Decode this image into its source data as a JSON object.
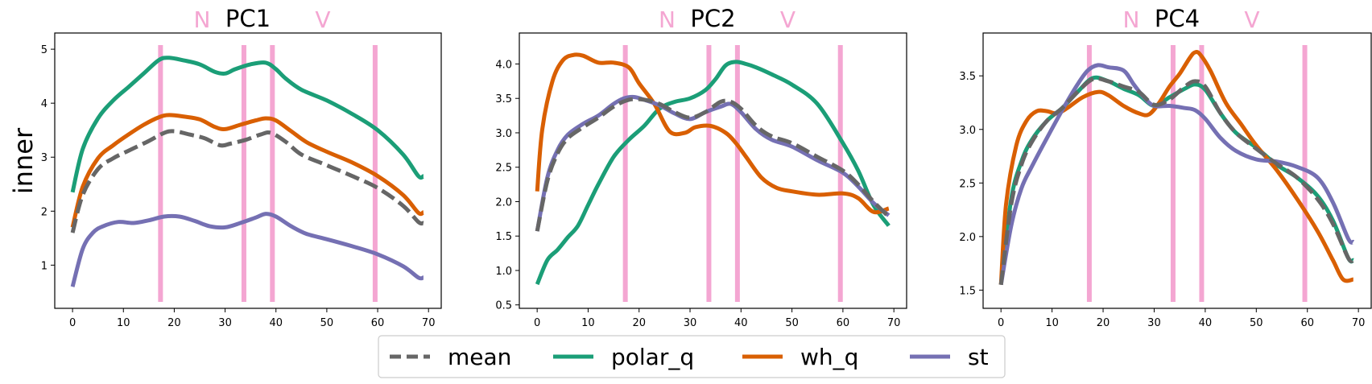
{
  "figure": {
    "ylabel": "inner",
    "legend": {
      "placement": "bottom-center",
      "entries": [
        {
          "label": "mean",
          "color": "#666666",
          "style": "dashed"
        },
        {
          "label": "polar_q",
          "color": "#1b9e77",
          "style": "solid"
        },
        {
          "label": "wh_q",
          "color": "#d95f02",
          "style": "solid"
        },
        {
          "label": "st",
          "color": "#7570b3",
          "style": "solid"
        }
      ]
    },
    "marker_color": "#f4a6d2",
    "title_marker_left": "N",
    "title_marker_right": "V"
  },
  "chart_data": [
    {
      "type": "line",
      "title": "PC1",
      "xlim": [
        -3.5,
        72.5
      ],
      "ylim": [
        0.2,
        5.3
      ],
      "xticks": [
        0,
        10,
        20,
        30,
        40,
        50,
        60,
        70
      ],
      "yticks": [
        1,
        2,
        3,
        4,
        5
      ],
      "grid": false,
      "vlines": [
        17.3,
        33.7,
        39.3,
        59.5
      ],
      "series": [
        {
          "name": "mean",
          "x": [
            0,
            2,
            5,
            8,
            11,
            15,
            18,
            20,
            23,
            26,
            29,
            31,
            34,
            37,
            39,
            42,
            45,
            50,
            55,
            60,
            65,
            68,
            69
          ],
          "y": [
            1.6,
            2.3,
            2.78,
            2.98,
            3.12,
            3.3,
            3.45,
            3.48,
            3.42,
            3.35,
            3.22,
            3.25,
            3.32,
            3.42,
            3.45,
            3.28,
            3.05,
            2.85,
            2.65,
            2.43,
            2.1,
            1.8,
            1.78
          ]
        },
        {
          "name": "polar_q",
          "x": [
            0,
            2,
            5,
            8,
            11,
            14,
            17,
            19,
            22,
            25,
            28,
            30,
            32,
            35,
            38,
            40,
            42,
            45,
            50,
            55,
            60,
            65,
            68,
            69
          ],
          "y": [
            2.35,
            3.15,
            3.72,
            4.05,
            4.3,
            4.55,
            4.8,
            4.84,
            4.79,
            4.72,
            4.58,
            4.55,
            4.63,
            4.72,
            4.75,
            4.63,
            4.45,
            4.25,
            4.05,
            3.8,
            3.5,
            3.05,
            2.65,
            2.65
          ]
        },
        {
          "name": "wh_q",
          "x": [
            0,
            2,
            5,
            8,
            11,
            14,
            17,
            19,
            22,
            25,
            28,
            30,
            33,
            36,
            38,
            40,
            43,
            46,
            50,
            55,
            60,
            65,
            68,
            69
          ],
          "y": [
            1.7,
            2.45,
            2.98,
            3.22,
            3.42,
            3.6,
            3.74,
            3.78,
            3.75,
            3.7,
            3.56,
            3.52,
            3.6,
            3.68,
            3.72,
            3.68,
            3.48,
            3.28,
            3.1,
            2.9,
            2.65,
            2.3,
            1.97,
            1.98
          ]
        },
        {
          "name": "st",
          "x": [
            0,
            2,
            4,
            6,
            9,
            12,
            15,
            18,
            21,
            24,
            27,
            30,
            33,
            36,
            38,
            40,
            43,
            46,
            50,
            55,
            60,
            65,
            68,
            69
          ],
          "y": [
            0.6,
            1.3,
            1.6,
            1.72,
            1.8,
            1.78,
            1.83,
            1.9,
            1.9,
            1.82,
            1.72,
            1.7,
            1.78,
            1.88,
            1.95,
            1.9,
            1.72,
            1.58,
            1.48,
            1.35,
            1.2,
            0.98,
            0.77,
            0.77
          ]
        }
      ]
    },
    {
      "type": "line",
      "title": "PC2",
      "xlim": [
        -3.5,
        72.5
      ],
      "ylim": [
        0.45,
        4.45
      ],
      "xticks": [
        0,
        10,
        20,
        30,
        40,
        50,
        60,
        70
      ],
      "yticks": [
        0.5,
        1.0,
        1.5,
        2.0,
        2.5,
        3.0,
        3.5,
        4.0
      ],
      "grid": false,
      "vlines": [
        17.3,
        33.7,
        39.3,
        59.5
      ],
      "series": [
        {
          "name": "mean",
          "x": [
            0,
            2,
            4,
            6,
            9,
            12,
            15,
            18,
            21,
            24,
            27,
            30,
            33,
            36,
            38,
            40,
            43,
            46,
            50,
            55,
            60,
            63,
            66,
            69
          ],
          "y": [
            1.57,
            2.3,
            2.7,
            2.92,
            3.08,
            3.22,
            3.38,
            3.48,
            3.48,
            3.42,
            3.3,
            3.22,
            3.3,
            3.45,
            3.45,
            3.35,
            3.1,
            2.95,
            2.85,
            2.65,
            2.45,
            2.25,
            2.0,
            1.78
          ]
        },
        {
          "name": "polar_q",
          "x": [
            0,
            2,
            4,
            6,
            8,
            10,
            12,
            15,
            18,
            21,
            24,
            27,
            30,
            33,
            35,
            37,
            39,
            41,
            43,
            46,
            50,
            55,
            60,
            63,
            66,
            69
          ],
          "y": [
            0.8,
            1.15,
            1.3,
            1.48,
            1.65,
            1.95,
            2.25,
            2.65,
            2.9,
            3.1,
            3.35,
            3.45,
            3.5,
            3.62,
            3.78,
            3.98,
            4.03,
            4.0,
            3.95,
            3.85,
            3.7,
            3.42,
            2.85,
            2.45,
            1.95,
            1.65
          ]
        },
        {
          "name": "wh_q",
          "x": [
            0,
            1,
            3,
            5,
            7,
            9,
            12,
            15,
            18,
            20,
            23,
            26,
            29,
            31,
            34,
            37,
            39,
            41,
            44,
            47,
            50,
            55,
            60,
            63,
            66,
            69
          ],
          "y": [
            2.15,
            3.05,
            3.75,
            4.05,
            4.13,
            4.12,
            4.02,
            4.02,
            3.95,
            3.72,
            3.42,
            3.02,
            3.0,
            3.08,
            3.1,
            3.0,
            2.85,
            2.65,
            2.35,
            2.2,
            2.15,
            2.1,
            2.12,
            2.05,
            1.85,
            1.9
          ]
        },
        {
          "name": "st",
          "x": [
            0,
            2,
            4,
            6,
            9,
            12,
            15,
            17,
            19,
            21,
            24,
            27,
            30,
            33,
            36,
            38,
            40,
            43,
            46,
            50,
            55,
            60,
            63,
            66,
            69
          ],
          "y": [
            1.57,
            2.35,
            2.75,
            2.97,
            3.13,
            3.25,
            3.42,
            3.5,
            3.52,
            3.48,
            3.4,
            3.28,
            3.2,
            3.3,
            3.38,
            3.42,
            3.3,
            3.05,
            2.9,
            2.8,
            2.6,
            2.42,
            2.22,
            1.98,
            1.8
          ]
        }
      ]
    },
    {
      "type": "line",
      "title": "PC4",
      "xlim": [
        -3.5,
        72.5
      ],
      "ylim": [
        1.33,
        3.9
      ],
      "xticks": [
        0,
        10,
        20,
        30,
        40,
        50,
        60,
        70
      ],
      "yticks": [
        1.5,
        2.0,
        2.5,
        3.0,
        3.5
      ],
      "grid": false,
      "vlines": [
        17.3,
        33.7,
        39.3,
        59.5
      ],
      "series": [
        {
          "name": "mean",
          "x": [
            0,
            2,
            4,
            6,
            9,
            12,
            15,
            18,
            21,
            24,
            27,
            30,
            33,
            36,
            38,
            40,
            43,
            46,
            50,
            54,
            58,
            62,
            65,
            68,
            69
          ],
          "y": [
            1.55,
            2.3,
            2.67,
            2.88,
            3.08,
            3.2,
            3.35,
            3.47,
            3.45,
            3.4,
            3.35,
            3.23,
            3.28,
            3.4,
            3.45,
            3.4,
            3.15,
            2.97,
            2.82,
            2.68,
            2.55,
            2.35,
            2.12,
            1.8,
            1.78
          ]
        },
        {
          "name": "polar_q",
          "x": [
            0,
            2,
            4,
            6,
            9,
            12,
            15,
            18,
            21,
            24,
            27,
            30,
            33,
            36,
            38,
            40,
            43,
            46,
            50,
            54,
            58,
            62,
            65,
            68,
            69
          ],
          "y": [
            1.55,
            2.35,
            2.7,
            2.9,
            3.08,
            3.2,
            3.35,
            3.48,
            3.45,
            3.38,
            3.32,
            3.22,
            3.3,
            3.38,
            3.42,
            3.37,
            3.15,
            2.97,
            2.83,
            2.67,
            2.55,
            2.38,
            2.15,
            1.8,
            1.78
          ]
        },
        {
          "name": "wh_q",
          "x": [
            0,
            1,
            3,
            5,
            7,
            9,
            11,
            13,
            16,
            19,
            21,
            24,
            27,
            29,
            31,
            33,
            35,
            37,
            38,
            39,
            41,
            44,
            47,
            50,
            54,
            58,
            62,
            65,
            67,
            69
          ],
          "y": [
            1.55,
            2.3,
            2.85,
            3.08,
            3.17,
            3.17,
            3.15,
            3.2,
            3.3,
            3.35,
            3.32,
            3.22,
            3.15,
            3.14,
            3.25,
            3.4,
            3.52,
            3.67,
            3.72,
            3.7,
            3.55,
            3.25,
            3.05,
            2.85,
            2.62,
            2.35,
            2.05,
            1.78,
            1.6,
            1.6
          ]
        },
        {
          "name": "st",
          "x": [
            0,
            2,
            4,
            6,
            9,
            12,
            15,
            17,
            19,
            21,
            24,
            26,
            28,
            30,
            33,
            36,
            38,
            40,
            43,
            46,
            50,
            54,
            58,
            62,
            65,
            68,
            69
          ],
          "y": [
            1.55,
            2.1,
            2.45,
            2.65,
            2.92,
            3.18,
            3.42,
            3.55,
            3.6,
            3.58,
            3.55,
            3.42,
            3.3,
            3.22,
            3.22,
            3.2,
            3.18,
            3.1,
            2.92,
            2.8,
            2.72,
            2.7,
            2.65,
            2.55,
            2.32,
            1.98,
            1.95
          ]
        }
      ]
    }
  ]
}
